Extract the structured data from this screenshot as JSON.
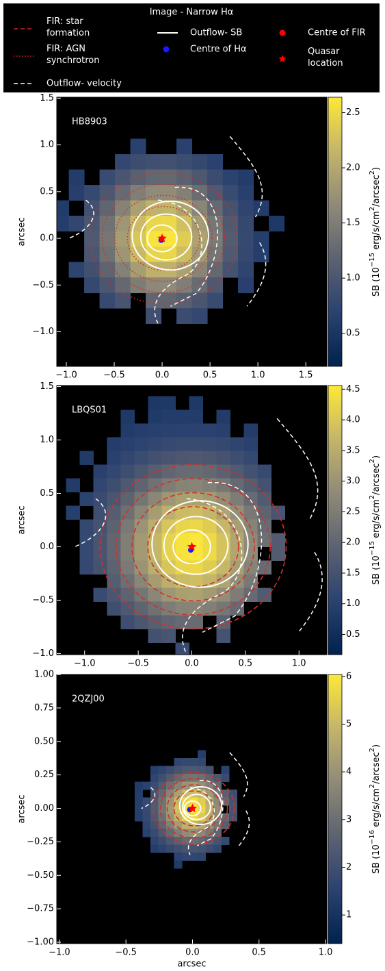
{
  "legend": {
    "title": "Image - Narrow Hα",
    "entries": [
      {
        "lines": [
          "FIR: star",
          "formation"
        ],
        "style": "dashed",
        "color": "#e0201c"
      },
      {
        "lines": [
          "FIR: AGN",
          "synchrotron"
        ],
        "style": "dotted",
        "color": "#e0201c"
      },
      {
        "lines": [
          "Outflow- velocity"
        ],
        "style": "dashed",
        "color": "#ffffff"
      },
      {
        "lines": [
          "Outflow- SB"
        ],
        "style": "solid",
        "color": "#ffffff"
      },
      {
        "lines": [
          "Centre of Hα"
        ],
        "style": "dot",
        "color": "#1a1aff"
      },
      {
        "lines": [
          "Centre of FIR"
        ],
        "style": "dot",
        "color": "#ff0000"
      },
      {
        "lines": [
          "Quasar",
          "location"
        ],
        "style": "star",
        "color": "#ff0000"
      }
    ]
  },
  "colormap": [
    "#00224e",
    "#2b4270",
    "#5d6270",
    "#8f8a78",
    "#c4b56a",
    "#fee838"
  ],
  "chart_data": [
    {
      "type": "heatmap",
      "title": "HB8903",
      "ylabel": "arcsec",
      "xlim": [
        -1.1,
        1.72
      ],
      "ylim": [
        -1.37,
        1.51
      ],
      "xticks": [
        {
          "value": -1,
          "label": "−1.0"
        },
        {
          "value": -0.5,
          "label": "−0.5"
        },
        {
          "value": 0,
          "label": "0.0"
        },
        {
          "value": 0.5,
          "label": "0.5"
        },
        {
          "value": 1,
          "label": "1.0"
        },
        {
          "value": 1.5,
          "label": "1.5"
        }
      ],
      "yticks": [
        {
          "value": 1.5,
          "label": "1.5"
        },
        {
          "value": 1,
          "label": "1.0"
        },
        {
          "value": 0.5,
          "label": "0.5"
        },
        {
          "value": 0,
          "label": "0.0"
        },
        {
          "value": -0.5,
          "label": "−0.5"
        },
        {
          "value": -1,
          "label": "−1.0"
        }
      ],
      "clim": [
        0.2,
        2.64
      ],
      "cticks": [
        {
          "value": 0.5,
          "label": "0.5"
        },
        {
          "value": 1,
          "label": "1.0"
        },
        {
          "value": 1.5,
          "label": "1.5"
        },
        {
          "value": 2,
          "label": "2.0"
        },
        {
          "value": 2.5,
          "label": "2.5"
        }
      ],
      "colorbar_label": {
        "a": "SB (10",
        "b": "−15",
        "c": " erg/s/cm",
        "d": "2",
        "e": "/arcsec",
        "f": "2",
        "g": ")"
      },
      "quasar_xy": [
        0,
        0
      ],
      "halpha_centre_xy": [
        -0.01,
        -0.02
      ]
    },
    {
      "type": "heatmap",
      "title": "LBQS01",
      "ylabel": "arcsec",
      "xlim": [
        -1.26,
        1.26
      ],
      "ylim": [
        -1.01,
        1.51
      ],
      "xticks": [
        {
          "value": -1,
          "label": "−1.0"
        },
        {
          "value": -0.5,
          "label": "−0.5"
        },
        {
          "value": 0,
          "label": "0.0"
        },
        {
          "value": 0.5,
          "label": "0.5"
        },
        {
          "value": 1,
          "label": "1.0"
        }
      ],
      "yticks": [
        {
          "value": 1.5,
          "label": "1.5"
        },
        {
          "value": 1,
          "label": "1.0"
        },
        {
          "value": 0.5,
          "label": "0.5"
        },
        {
          "value": 0,
          "label": "0.0"
        },
        {
          "value": -0.5,
          "label": "−0.5"
        },
        {
          "value": -1,
          "label": "−1.0"
        }
      ],
      "clim": [
        0.17,
        4.56
      ],
      "cticks": [
        {
          "value": 0.5,
          "label": "0.5"
        },
        {
          "value": 1,
          "label": "1.0"
        },
        {
          "value": 1.5,
          "label": "1.5"
        },
        {
          "value": 2,
          "label": "2.0"
        },
        {
          "value": 2.5,
          "label": "2.5"
        },
        {
          "value": 3,
          "label": "3.0"
        },
        {
          "value": 3.5,
          "label": "3.5"
        },
        {
          "value": 4,
          "label": "4.0"
        },
        {
          "value": 4.5,
          "label": "4.5"
        }
      ],
      "colorbar_label": {
        "a": "SB (10",
        "b": "−15",
        "c": " erg/s/cm",
        "d": "2",
        "e": "/arcsec",
        "f": "2",
        "g": ")"
      },
      "quasar_xy": [
        0,
        0
      ],
      "halpha_centre_xy": [
        -0.01,
        -0.03
      ]
    },
    {
      "type": "heatmap",
      "title": "2QZJ00",
      "ylabel": "arcsec",
      "xlabel": "arcsec",
      "xlim": [
        -1.02,
        1.01
      ],
      "ylim": [
        -1.01,
        1.0
      ],
      "xticks": [
        {
          "value": -1,
          "label": "−1.0"
        },
        {
          "value": -0.5,
          "label": "−0.5"
        },
        {
          "value": 0,
          "label": "0.0"
        },
        {
          "value": 0.5,
          "label": "0.5"
        },
        {
          "value": 1,
          "label": "1.0"
        }
      ],
      "yticks": [
        {
          "value": 1,
          "label": "1.00"
        },
        {
          "value": 0.75,
          "label": "0.75"
        },
        {
          "value": 0.5,
          "label": "0.50"
        },
        {
          "value": 0.25,
          "label": "0.25"
        },
        {
          "value": 0,
          "label": "0.00"
        },
        {
          "value": -0.25,
          "label": "−0.25"
        },
        {
          "value": -0.5,
          "label": "−0.50"
        },
        {
          "value": -0.75,
          "label": "−0.75"
        },
        {
          "value": -1,
          "label": "−1.00"
        }
      ],
      "clim": [
        0.4,
        6.04
      ],
      "cticks": [
        1,
        2,
        3,
        4,
        5,
        6
      ],
      "colorbar_label": {
        "a": "SB (10",
        "b": "−16",
        "c": " erg/s/cm",
        "d": "2",
        "e": "/arcsec",
        "f": "2",
        "g": ")"
      },
      "quasar_xy": [
        0,
        0
      ],
      "halpha_centre_xy": [
        -0.02,
        -0.01
      ]
    }
  ]
}
